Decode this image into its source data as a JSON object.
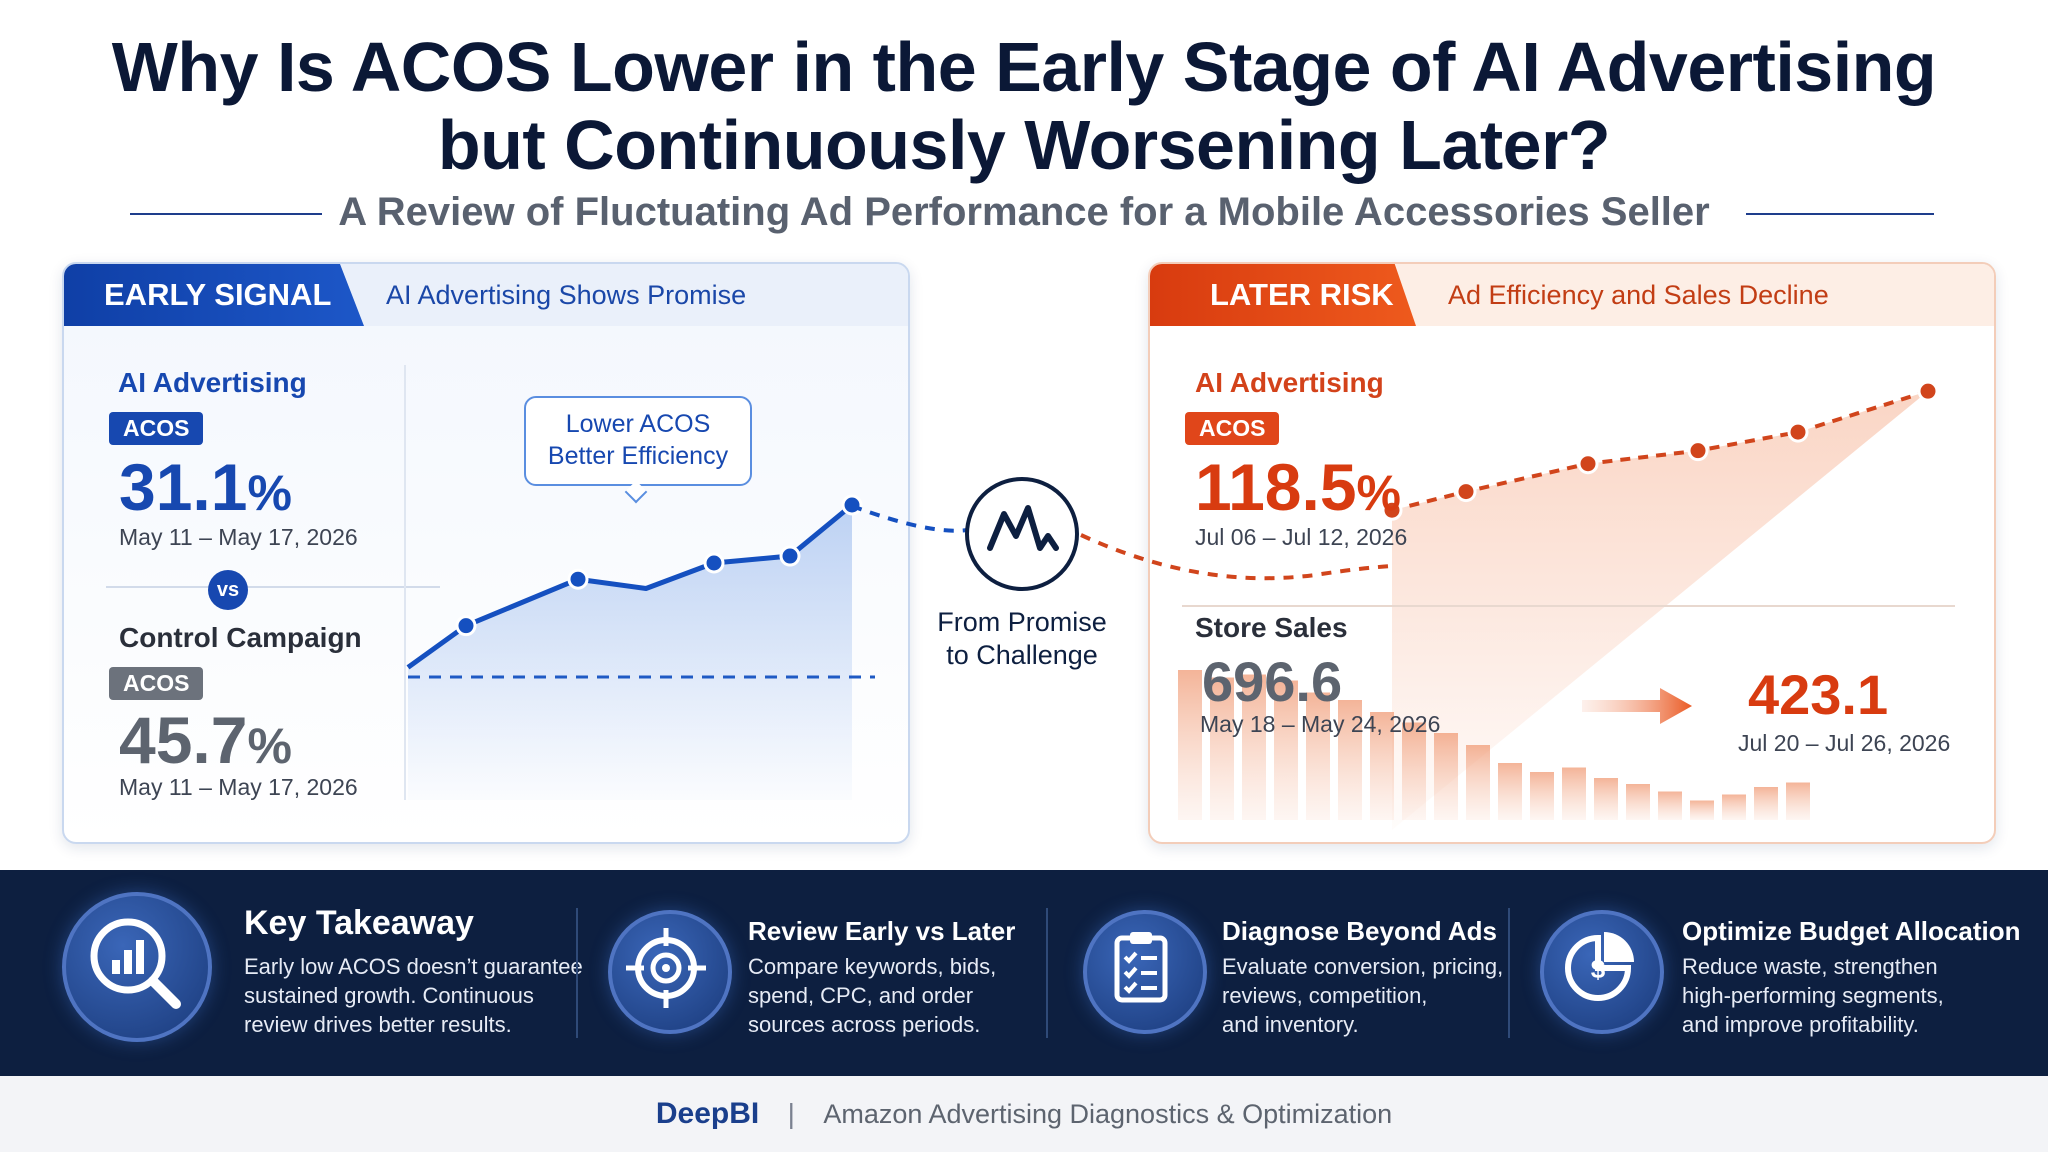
{
  "header": {
    "title_line1": "Why Is ACOS Lower in the Early Stage of AI Advertising",
    "title_line2": "but Continuously Worsening Later?",
    "subtitle": "A Review of Fluctuating Ad Performance for a Mobile Accessories Seller"
  },
  "left_panel": {
    "tab_label": "EARLY SIGNAL",
    "tab_desc": "AI Advertising Shows Promise",
    "ai_label": "AI Advertising",
    "ai_badge": "ACOS",
    "ai_value": "31.1",
    "ai_unit": "%",
    "ai_date": "May 11 – May 17, 2026",
    "vs": "vs",
    "control_label": "Control Campaign",
    "control_badge": "ACOS",
    "control_value": "45.7",
    "control_unit": "%",
    "control_date": "May 11 – May 17, 2026",
    "callout_line1": "Lower ACOS",
    "callout_line2": "Better Efficiency",
    "trend": [
      0.3,
      0.48,
      0.68,
      0.64,
      0.75,
      0.78,
      1.0
    ]
  },
  "middle": {
    "label_line1": "From Promise",
    "label_line2": "to Challenge"
  },
  "right_panel": {
    "tab_label": "LATER RISK",
    "tab_desc": "Ad Efficiency and Sales Decline",
    "ai_label": "AI Advertising",
    "ai_badge": "ACOS",
    "ai_value": "118.5",
    "ai_unit": "%",
    "ai_date": "Jul 06 – Jul 12, 2026",
    "sales_label": "Store Sales",
    "sales_start": "696.6",
    "sales_start_date": "May 18 – May 24, 2026",
    "sales_end": "423.1",
    "sales_end_date": "Jul 20 – Jul 26, 2026",
    "trend": [
      0.3,
      0.4,
      0.55,
      0.62,
      0.72,
      0.94,
      1.0
    ],
    "bars": [
      1.0,
      0.95,
      0.97,
      0.93,
      0.85,
      0.8,
      0.72,
      0.65,
      0.58,
      0.5,
      0.38,
      0.32,
      0.35,
      0.28,
      0.24,
      0.19,
      0.13,
      0.17,
      0.22,
      0.25
    ]
  },
  "takeaways": [
    {
      "title": "Key Takeaway",
      "text": [
        "Early low ACOS doesn’t guarantee",
        "sustained growth. Continuous",
        "review drives better results."
      ]
    },
    {
      "title": "Review Early vs Later",
      "text": [
        "Compare keywords, bids,",
        "spend, CPC, and order",
        "sources across periods."
      ]
    },
    {
      "title": "Diagnose Beyond Ads",
      "text": [
        "Evaluate conversion, pricing,",
        "reviews, competition,",
        "and inventory."
      ]
    },
    {
      "title": "Optimize Budget Allocation",
      "text": [
        "Reduce waste, strengthen",
        "high-performing segments,",
        "and improve profitability."
      ]
    }
  ],
  "footer": {
    "brand": "DeepBI",
    "separator": "|",
    "tagline": "Amazon Advertising Diagnostics & Optimization"
  },
  "colors": {
    "blue": "#1748b0",
    "orange": "#e0461a",
    "navy": "#0d1f40",
    "gray": "#5d646f"
  }
}
